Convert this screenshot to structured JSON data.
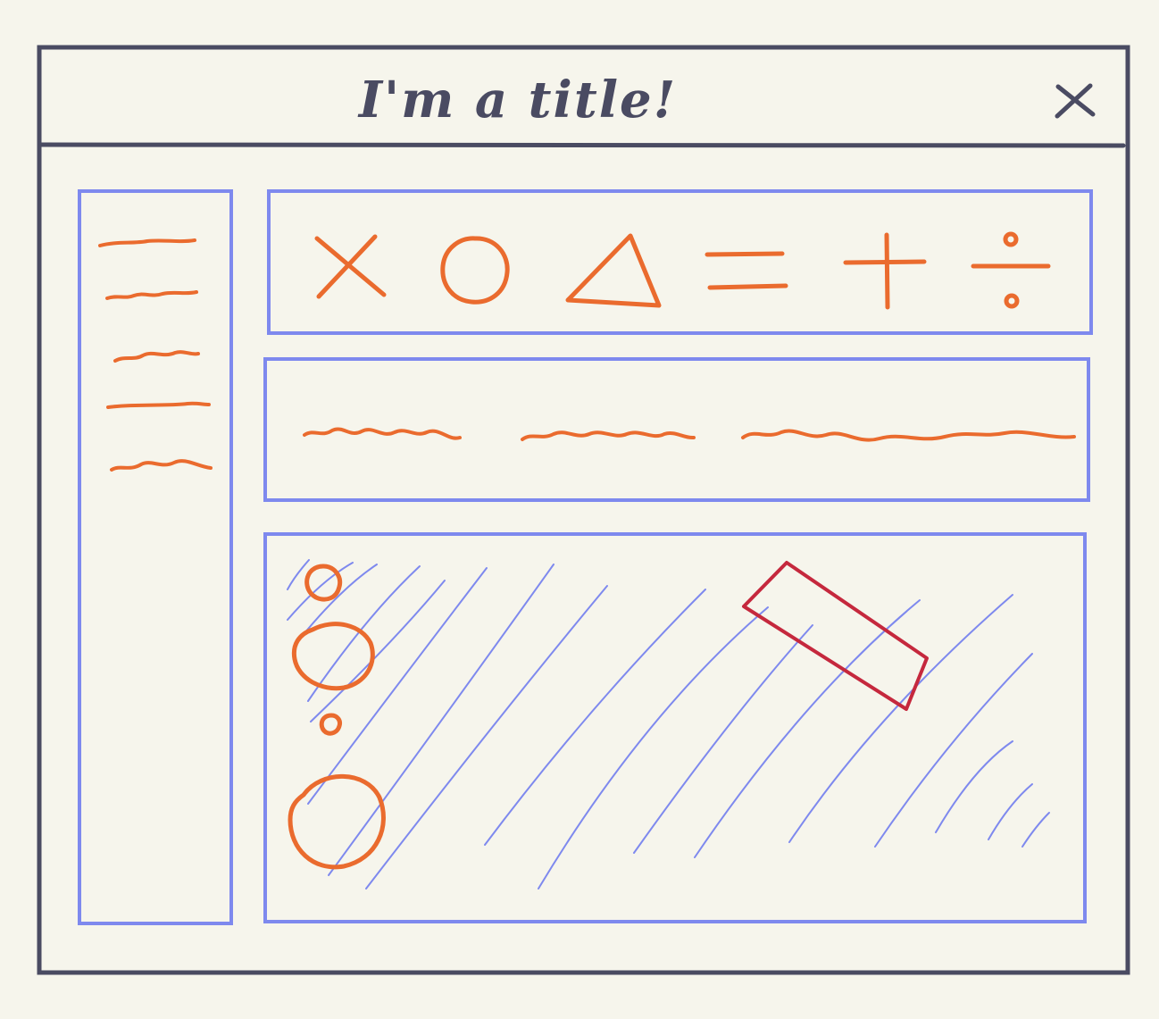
{
  "window": {
    "title": "I'm a title!",
    "close_icon": "close-icon"
  },
  "sidebar": {
    "line_count": 5
  },
  "toolbar": {
    "icons": [
      "times-icon",
      "circle-icon",
      "triangle-icon",
      "equals-icon",
      "plus-icon",
      "divide-icon"
    ]
  },
  "text_bar": {
    "squiggle_count": 3
  },
  "canvas": {
    "shapes": [
      "circle",
      "circle",
      "circle",
      "circle",
      "rectangle"
    ]
  },
  "colors": {
    "background": "#f6f5ec",
    "frame": "#4a4b62",
    "panel": "#7e89ee",
    "accent": "#ea6b2e",
    "selection": "#c5283d"
  }
}
